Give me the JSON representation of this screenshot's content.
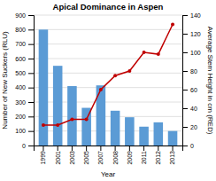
{
  "chart_data": {
    "type": "bar",
    "title": "Apical Dominance in Aspen",
    "xlabel": "Year",
    "ylabel": "Number of New Suckers (RLU)",
    "y2label": "Average Stem Height in cm (RED)",
    "categories": [
      "1999",
      "2001",
      "2003",
      "2005",
      "2007",
      "2008",
      "2009",
      "2011",
      "2012",
      "2013"
    ],
    "series": [
      {
        "type": "bar",
        "color": "#5B9BD5",
        "values": [
          800,
          550,
          410,
          260,
          415,
          240,
          195,
          130,
          160,
          100
        ]
      },
      {
        "type": "line",
        "color": "#C00000",
        "marker": "circle",
        "axis": "y2",
        "values": [
          22,
          22,
          28,
          28,
          60,
          75,
          80,
          100,
          98,
          130
        ]
      }
    ],
    "ylim": [
      0,
      900
    ],
    "yticks": [
      0,
      100,
      200,
      300,
      400,
      500,
      600,
      700,
      800,
      900
    ],
    "y2lim": [
      0,
      140
    ],
    "y2ticks": [
      0,
      20,
      40,
      60,
      80,
      100,
      120,
      140
    ],
    "grid": true
  }
}
